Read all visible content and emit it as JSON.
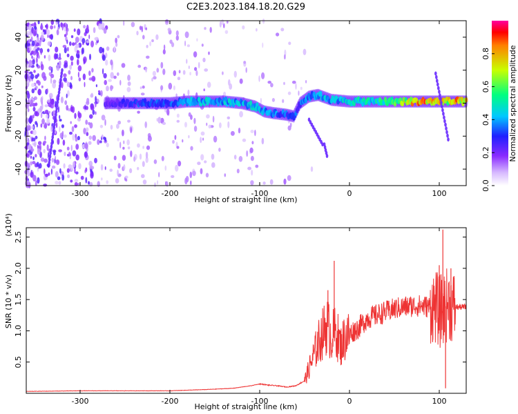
{
  "figure_title": "C2E3.2023.184.18.20.G29",
  "chart_data": [
    {
      "type": "heatmap",
      "xlabel": "Height of straight line (km)",
      "ylabel": "Frequency (Hz)",
      "xlim": [
        -360,
        130
      ],
      "ylim": [
        -50,
        50
      ],
      "x_ticks": [
        -300,
        -200,
        -100,
        0,
        100
      ],
      "y_ticks": [
        -40,
        -20,
        0,
        20,
        40
      ],
      "colorbar": {
        "label": "Normalized spectral amplitude",
        "range": [
          0.0,
          1.0
        ],
        "ticks": [
          0.0,
          0.2,
          0.4,
          0.6,
          0.8
        ]
      },
      "ridge": [
        {
          "x": -270,
          "y": 0,
          "amp": 0.25
        },
        {
          "x": -250,
          "y": 0,
          "amp": 0.3
        },
        {
          "x": -220,
          "y": 0,
          "amp": 0.35
        },
        {
          "x": -200,
          "y": 0,
          "amp": 0.35
        },
        {
          "x": -180,
          "y": 1,
          "amp": 0.4
        },
        {
          "x": -160,
          "y": 1,
          "amp": 0.45
        },
        {
          "x": -140,
          "y": 1,
          "amp": 0.45
        },
        {
          "x": -120,
          "y": 0,
          "amp": 0.45
        },
        {
          "x": -105,
          "y": -2,
          "amp": 0.45
        },
        {
          "x": -95,
          "y": -5,
          "amp": 0.4
        },
        {
          "x": -85,
          "y": -6,
          "amp": 0.4
        },
        {
          "x": -70,
          "y": -7,
          "amp": 0.35
        },
        {
          "x": -62,
          "y": -8,
          "amp": 0.35
        },
        {
          "x": -55,
          "y": 0,
          "amp": 0.35
        },
        {
          "x": -45,
          "y": 4,
          "amp": 0.4
        },
        {
          "x": -35,
          "y": 5,
          "amp": 0.45
        },
        {
          "x": -20,
          "y": 2,
          "amp": 0.45
        },
        {
          "x": 0,
          "y": 1,
          "amp": 0.5
        },
        {
          "x": 20,
          "y": 1,
          "amp": 0.5
        },
        {
          "x": 40,
          "y": 1,
          "amp": 0.55
        },
        {
          "x": 60,
          "y": 1,
          "amp": 0.7
        },
        {
          "x": 80,
          "y": 1,
          "amp": 0.9
        },
        {
          "x": 95,
          "y": 1,
          "amp": 0.85
        },
        {
          "x": 110,
          "y": 1,
          "amp": 0.8
        },
        {
          "x": 130,
          "y": 1,
          "amp": 0.85
        }
      ]
    },
    {
      "type": "line",
      "xlabel": "Height of straight line (km)",
      "ylabel": "SNR (10 * v/v)",
      "y_multiplier": "(x10⁴)",
      "xlim": [
        -360,
        130
      ],
      "ylim": [
        0.0,
        2.65
      ],
      "x_ticks": [
        -300,
        -200,
        -100,
        0,
        100
      ],
      "y_ticks": [
        0.5,
        1.0,
        1.5,
        2.0,
        2.5
      ],
      "series": [
        {
          "color": "#ee3333",
          "x": [
            -360,
            -300,
            -250,
            -200,
            -160,
            -130,
            -110,
            -100,
            -90,
            -80,
            -70,
            -60,
            -50,
            -45,
            -40,
            -35,
            -30,
            -25,
            -20,
            -15,
            -10,
            -5,
            0,
            10,
            20,
            30,
            40,
            50,
            60,
            70,
            80,
            90,
            95,
            100,
            105,
            110,
            115,
            120,
            130
          ],
          "y": [
            0.03,
            0.04,
            0.04,
            0.04,
            0.06,
            0.08,
            0.12,
            0.15,
            0.13,
            0.12,
            0.1,
            0.12,
            0.2,
            0.4,
            0.6,
            0.8,
            0.95,
            1.1,
            0.9,
            1.0,
            0.75,
            0.9,
            0.95,
            1.05,
            1.2,
            1.25,
            1.3,
            1.35,
            1.38,
            1.4,
            1.4,
            1.38,
            1.4,
            1.3,
            1.35,
            1.45,
            1.38,
            1.38,
            1.38
          ]
        }
      ],
      "spikes": [
        {
          "x": -17,
          "y": 2.12
        },
        {
          "x": -24,
          "y": 1.65
        },
        {
          "x": 104,
          "y": 2.62
        },
        {
          "x": 107,
          "y": 0.08
        },
        {
          "x": 113,
          "y": 2.0
        },
        {
          "x": 100,
          "y": 2.05
        }
      ]
    }
  ]
}
